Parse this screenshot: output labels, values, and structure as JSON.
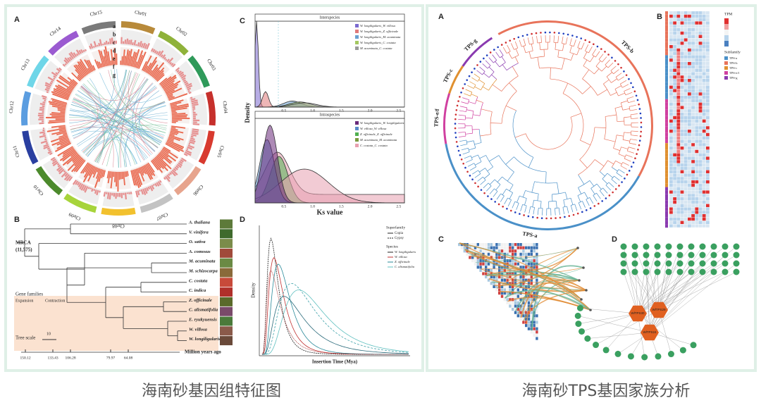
{
  "left": {
    "caption": "海南砂基因组特征图",
    "a": {
      "label": "A",
      "chromosomes": [
        "Chr01",
        "Chr02",
        "Chr03",
        "Chr04",
        "Chr05",
        "Chr06",
        "Chr07",
        "Chr08",
        "Chr09",
        "Chr10",
        "Chr11",
        "Chr12",
        "Chr13",
        "Chr14",
        "Chr15"
      ],
      "tracks": [
        "a",
        "b",
        "c",
        "d",
        "e",
        "f",
        "g"
      ]
    },
    "b": {
      "label": "B",
      "mrca": "MRCA",
      "mrca_count": "(11,575)",
      "legend_title": "Gene families",
      "expansion": "Expansion",
      "contraction": "Contraction",
      "tree_scale": "Tree scale",
      "scale_value": "10",
      "axis_title": "Million years ago",
      "species": [
        "A. thaliana",
        "V. vinifera",
        "O. sativa",
        "A. comosus",
        "M. acuminata",
        "M. schizocarpa",
        "C. costata",
        "C. indica",
        "Z. officinale",
        "C. alismatifolia",
        "E. ryukyuensis",
        "W. villosa",
        "W. longiligularis"
      ],
      "times": [
        "150.12",
        "133.43",
        "106.28",
        "79.97",
        "64.08"
      ]
    },
    "c": {
      "label": "C",
      "inter_title": "Interspecies",
      "intra_title": "Intraspecies",
      "y_title": "Density",
      "x_title": "Ks value",
      "xticks": [
        "0.5",
        "1.0",
        "1.5",
        "2.0",
        "2.5"
      ],
      "inter_legend": [
        "W. longiligularis_W. villosa",
        "W. longiligularis_Z. officinale",
        "W. longiligularis_M. acuminata",
        "W. longiligularis_C. costata",
        "M. acuminata_C. costata"
      ],
      "intra_legend": [
        "W. longiligularis_W. longiligularis",
        "W. villosa_W. villosa",
        "Z. officinale_Z. officinale",
        "M. acuminata_M. acuminata",
        "C. costata_C. costata"
      ]
    },
    "d": {
      "label": "D",
      "x_title": "Insertion Time (Mya)",
      "y_title": "Density",
      "superfamily_title": "Superfamily",
      "superfamilies": [
        "Copia",
        "Gypsy"
      ],
      "species_title": "Species",
      "species": [
        "W. longiligularis",
        "W. villosa",
        "Z. officinale",
        "C. alismatifolia"
      ]
    }
  },
  "right": {
    "caption": "海南砂TPS基因家族分析",
    "a": {
      "label": "A",
      "clades": [
        "TPS-b",
        "TPS-a",
        "TPS-e/f",
        "TPS-c",
        "TPS-g"
      ]
    },
    "b": {
      "label": "B",
      "tpm_title": "TPM",
      "subfamily_title": "Subfamily",
      "subfamilies": [
        "TPS-a",
        "TPS-b",
        "TPS-c",
        "TPS-e/f",
        "TPS-g"
      ]
    },
    "c": {
      "label": "C"
    },
    "d": {
      "label": "D",
      "hubs": [
        "WlTPS30",
        "WlTPS29",
        "WlTPS24"
      ]
    }
  }
}
